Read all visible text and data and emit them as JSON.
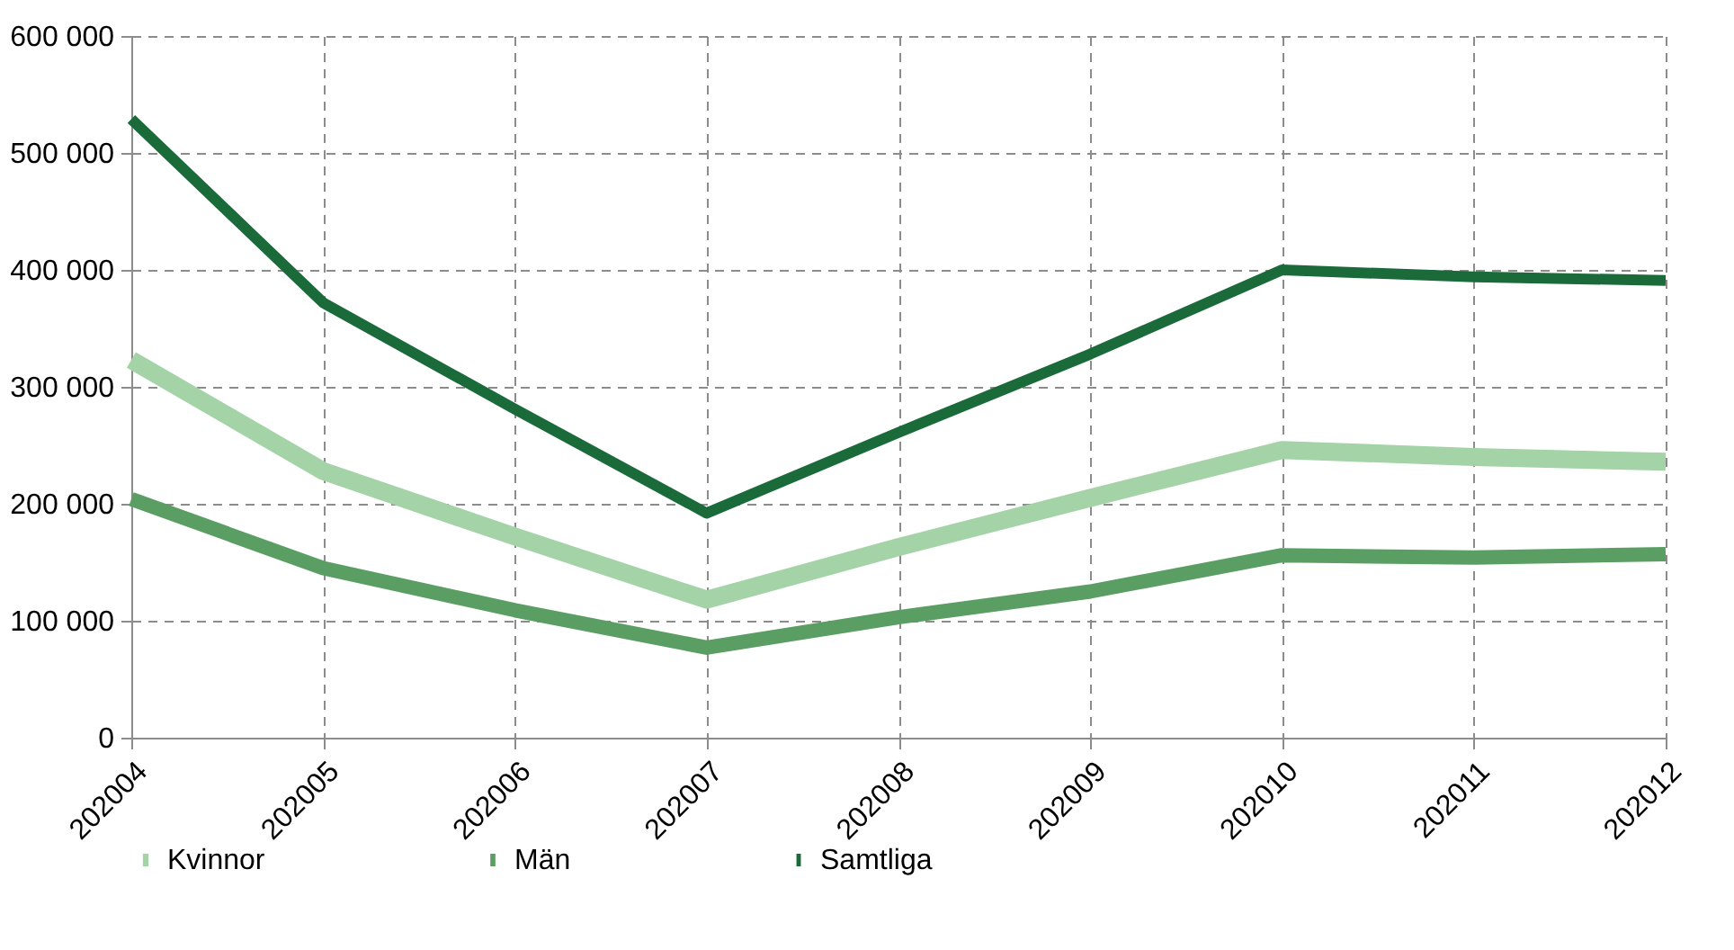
{
  "chart_data": {
    "type": "line",
    "categories": [
      "202004",
      "202005",
      "202006",
      "202007",
      "202008",
      "202009",
      "202010",
      "202011",
      "202012"
    ],
    "series": [
      {
        "name": "Kvinnor",
        "color": "#a3d3a6",
        "values": [
          323000,
          228000,
          172000,
          118000,
          163000,
          205000,
          246000,
          240000,
          236000
        ]
      },
      {
        "name": "Män",
        "color": "#5a9e64",
        "values": [
          204000,
          145000,
          109000,
          77000,
          103000,
          125000,
          156000,
          154000,
          157000
        ]
      },
      {
        "name": "Samtliga",
        "color": "#1b6b3a",
        "values": [
          529000,
          372000,
          281000,
          192000,
          261000,
          328000,
          400000,
          394000,
          391000
        ]
      }
    ],
    "ylim": [
      0,
      600000
    ],
    "yticks": [
      {
        "value": 0,
        "label": "0"
      },
      {
        "value": 100000,
        "label": "100 000"
      },
      {
        "value": 200000,
        "label": "200 000"
      },
      {
        "value": 300000,
        "label": "300 000"
      },
      {
        "value": 400000,
        "label": "400 000"
      },
      {
        "value": 500000,
        "label": "500 000"
      },
      {
        "value": 600000,
        "label": "600 000"
      }
    ],
    "grid": true,
    "legend": "bottom",
    "marker": "none",
    "line_style": "solid"
  }
}
